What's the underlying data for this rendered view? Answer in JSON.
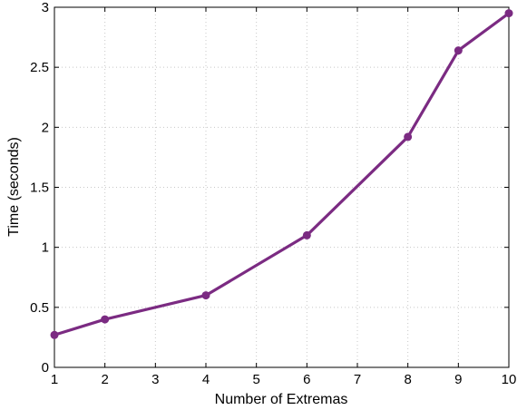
{
  "chart_data": {
    "type": "line",
    "title": "",
    "xlabel": "Number of Extremas",
    "ylabel": "Time (seconds)",
    "x_tick_labels": [
      "1",
      "2",
      "3",
      "4",
      "5",
      "6",
      "7",
      "8",
      "9",
      "10"
    ],
    "y_ticks": [
      0,
      0.5,
      1,
      1.5,
      2,
      2.5,
      3
    ],
    "y_tick_labels": [
      "0",
      "0.5",
      "1",
      "1.5",
      "2",
      "2.5",
      "3"
    ],
    "xlim": [
      1,
      10
    ],
    "ylim": [
      0,
      3
    ],
    "grid": true,
    "legend": "none",
    "x_positions": [
      1,
      2,
      4,
      6,
      8,
      9,
      10
    ],
    "series": [
      {
        "values": [
          0.27,
          0.4,
          0.6,
          1.1,
          1.92,
          2.64,
          2.95
        ],
        "color": "#7b2b82",
        "marker": "circle"
      }
    ]
  }
}
